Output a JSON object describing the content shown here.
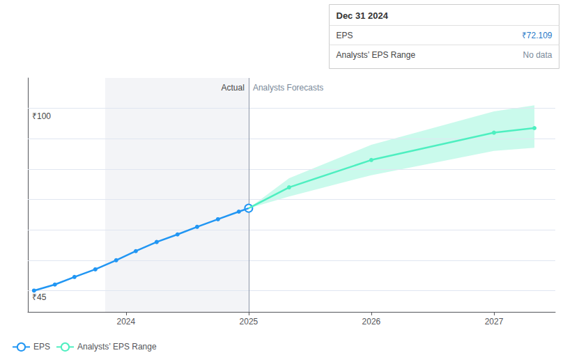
{
  "chart_data": {
    "type": "line",
    "xlim": [
      2023.2,
      2027.5
    ],
    "xticks": [
      2024,
      2025,
      2026,
      2027
    ],
    "ylim": [
      38,
      115
    ],
    "yticks": [
      45,
      55,
      65,
      75,
      85,
      95,
      105
    ],
    "grid": true,
    "tick_labels": "x",
    "legend": "lower left",
    "series": [
      {
        "name": "EPS",
        "color": "#2196f3",
        "x": [
          2023.25,
          2023.42,
          2023.58,
          2023.75,
          2023.92,
          2024.08,
          2024.25,
          2024.42,
          2024.58,
          2024.75,
          2024.92,
          2025.0
        ],
        "values": [
          45,
          47,
          49.5,
          52,
          55,
          58,
          61,
          63.5,
          66,
          68.5,
          71,
          72.109
        ]
      },
      {
        "name": "Analysts’ EPS Range",
        "color": "#4eefc0",
        "x": [
          2025.0,
          2025.33,
          2026.0,
          2027.0,
          2027.33
        ],
        "values": [
          72.109,
          79,
          88,
          97,
          98.5
        ],
        "upper": [
          72.109,
          82,
          93,
          104,
          106
        ],
        "lower": [
          72.109,
          76,
          83,
          91,
          92
        ]
      }
    ],
    "highlight": [
      2023.83,
      2025.0
    ],
    "vline": {
      "x": 2025.0,
      "labels": [
        "Actual",
        "Analysts Forecasts"
      ]
    },
    "point": {
      "x": 2025.0,
      "y": 72.109
    },
    "annotations": [
      {
        "text": "₹100",
        "y": 100
      },
      {
        "text": "₹45",
        "y": 45
      }
    ],
    "tooltip": {
      "title": "Dec 31 2024",
      "rows": [
        {
          "label": "EPS",
          "value": "₹72.109"
        },
        {
          "label": "Analysts’ EPS Range",
          "value": "No data"
        }
      ]
    }
  }
}
